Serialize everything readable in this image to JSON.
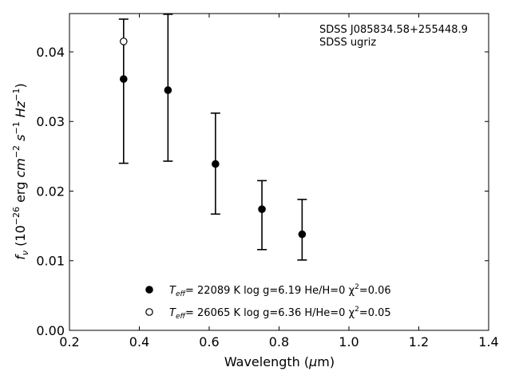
{
  "chart_data": {
    "type": "scatter",
    "xlabel": "Wavelength (μm)",
    "ylabel": "f_ν (10^-26 erg cm^-2 s^-1 Hz^-1)",
    "xlim": [
      0.2,
      1.4
    ],
    "ylim": [
      0.0,
      0.0455
    ],
    "x_ticks": [
      0.2,
      0.4,
      0.6,
      0.8,
      1.0,
      1.2,
      1.4
    ],
    "x_tick_labels": [
      "0.2",
      "0.4",
      "0.6",
      "0.8",
      "1.0",
      "1.2",
      "1.4"
    ],
    "y_ticks": [
      0.0,
      0.01,
      0.02,
      0.03,
      0.04
    ],
    "y_tick_labels": [
      "0.00",
      "0.01",
      "0.02",
      "0.03",
      "0.04"
    ],
    "grid": false,
    "annotation": [
      "SDSS J085834.58+255448.9",
      "SDSS ugriz"
    ],
    "observed": {
      "x": [
        0.355,
        0.482,
        0.618,
        0.751,
        0.866
      ],
      "y": [
        0.0415,
        0.0345,
        0.0239,
        0.0174,
        0.0138
      ],
      "yerr_low": [
        0.024,
        0.0243,
        0.0167,
        0.0116,
        0.0101
      ],
      "yerr_high": [
        0.0447,
        0.0454,
        0.0312,
        0.0215,
        0.0188
      ]
    },
    "series": [
      {
        "label_prefix": "T",
        "label_sub": "eff",
        "label_rest": "= 22089 K  log g=6.19  He/H=0  χ",
        "label_end": "=0.06",
        "marker": "filled",
        "x": [
          0.355,
          0.482,
          0.618,
          0.751,
          0.866
        ],
        "y": [
          0.0361,
          0.0345,
          0.0239,
          0.0174,
          0.0138
        ]
      },
      {
        "label_prefix": "T",
        "label_sub": "eff",
        "label_rest": "= 26065 K  log g=6.36  H/He=0  χ",
        "label_end": "=0.05",
        "marker": "open",
        "x": [
          0.355
        ],
        "y": [
          0.0415
        ]
      }
    ]
  }
}
